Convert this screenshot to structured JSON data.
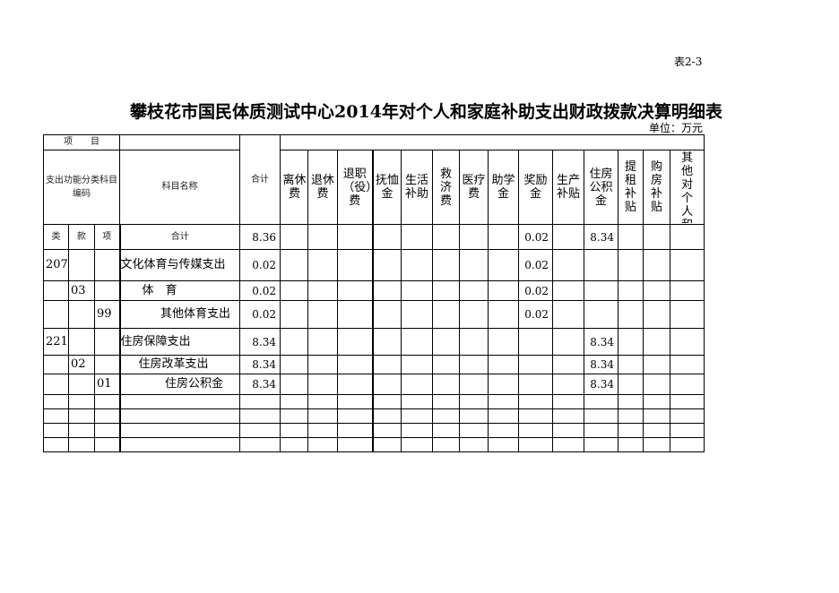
{
  "table_no": "表2-3",
  "title": "攀枝花市国民体质测试中心2014年对个人和家庭补助支出财政拨款决算明细表",
  "unit": "单位：万元",
  "header": {
    "item": "项　　目",
    "code": "支出功能分类科目编码",
    "name": "科目名称",
    "total": "合计",
    "columns": [
      "离休费",
      "退休费",
      "退职（役）费",
      "抚恤金",
      "生活补助",
      "救济费",
      "医疗费",
      "助学金",
      "奖励金",
      "生产补贴",
      "住房公积金",
      "提租补贴",
      "购房补贴",
      "其他对个人和家庭的补助支出"
    ],
    "lei": "类",
    "kuan": "款",
    "xiang": "项",
    "sum_label": "合计"
  },
  "sum_row": {
    "total": "8.36",
    "values": [
      "",
      "",
      "",
      "",
      "",
      "",
      "",
      "",
      "0.02",
      "",
      "8.34",
      "",
      "",
      ""
    ]
  },
  "rows": [
    {
      "lei": "207",
      "kuan": "",
      "xiang": "",
      "name": "文化体育与传媒支出",
      "total": "0.02",
      "values": [
        "",
        "",
        "",
        "",
        "",
        "",
        "",
        "",
        "0.02",
        "",
        "",
        "",
        "",
        ""
      ]
    },
    {
      "lei": "",
      "kuan": "03",
      "xiang": "",
      "name": "体　育",
      "total": "0.02",
      "values": [
        "",
        "",
        "",
        "",
        "",
        "",
        "",
        "",
        "0.02",
        "",
        "",
        "",
        "",
        ""
      ]
    },
    {
      "lei": "",
      "kuan": "",
      "xiang": "99",
      "name": "其他体育支出",
      "total": "0.02",
      "values": [
        "",
        "",
        "",
        "",
        "",
        "",
        "",
        "",
        "0.02",
        "",
        "",
        "",
        "",
        ""
      ]
    },
    {
      "lei": "221",
      "kuan": "",
      "xiang": "",
      "name": "住房保障支出",
      "total": "8.34",
      "values": [
        "",
        "",
        "",
        "",
        "",
        "",
        "",
        "",
        "",
        "",
        "8.34",
        "",
        "",
        ""
      ]
    },
    {
      "lei": "",
      "kuan": "02",
      "xiang": "",
      "name": "住房改革支出",
      "total": "8.34",
      "values": [
        "",
        "",
        "",
        "",
        "",
        "",
        "",
        "",
        "",
        "",
        "8.34",
        "",
        "",
        ""
      ]
    },
    {
      "lei": "",
      "kuan": "",
      "xiang": "01",
      "name": "住房公积金",
      "total": "8.34",
      "values": [
        "",
        "",
        "",
        "",
        "",
        "",
        "",
        "",
        "",
        "",
        "8.34",
        "",
        "",
        ""
      ]
    }
  ]
}
